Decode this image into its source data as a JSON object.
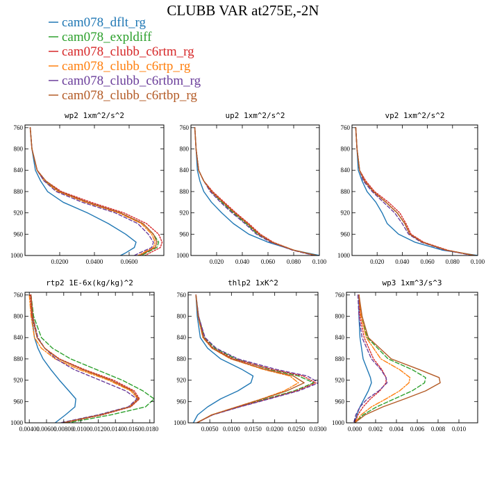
{
  "title": "CLUBB VAR at275E,-2N",
  "legend": [
    {
      "name": "cam078_dflt_rg",
      "color": "#1f77b4",
      "dash": ""
    },
    {
      "name": "cam078_expldiff",
      "color": "#2ca02c",
      "dash": "6,3"
    },
    {
      "name": "cam078_clubb_c6rtm_rg",
      "color": "#d62728",
      "dash": "2,2"
    },
    {
      "name": "cam078_clubb_c6rtp_rg",
      "color": "#ff7f0e",
      "dash": "7,2,2,2"
    },
    {
      "name": "cam078_clubb_c6rtbm_rg",
      "color": "#6a3d9a",
      "dash": "5,3"
    },
    {
      "name": "cam078_clubb_c6rtbp_rg",
      "color": "#b35a25",
      "dash": ""
    }
  ],
  "chart_data": [
    {
      "type": "line",
      "title": "wp2   1xm^2/s^2",
      "ylim": [
        1000,
        755
      ],
      "yticks": [
        760,
        800,
        840,
        880,
        920,
        960,
        1000
      ],
      "xlim": [
        0,
        0.08
      ],
      "xticks": [
        0.02,
        0.04,
        0.06
      ],
      "xtick_labels": [
        "0.0200",
        "0.0400",
        "0.0600"
      ],
      "y": [
        760,
        800,
        840,
        860,
        880,
        900,
        920,
        940,
        960,
        975,
        985,
        995,
        1000
      ],
      "series": [
        {
          "values": [
            0.003,
            0.004,
            0.006,
            0.009,
            0.013,
            0.022,
            0.036,
            0.048,
            0.058,
            0.064,
            0.063,
            0.058,
            0.055
          ]
        },
        {
          "values": [
            0.003,
            0.004,
            0.007,
            0.011,
            0.02,
            0.036,
            0.055,
            0.068,
            0.074,
            0.077,
            0.076,
            0.07,
            0.067
          ]
        },
        {
          "values": [
            0.003,
            0.004,
            0.007,
            0.012,
            0.021,
            0.038,
            0.057,
            0.07,
            0.077,
            0.079,
            0.078,
            0.072,
            0.069
          ]
        },
        {
          "values": [
            0.003,
            0.004,
            0.007,
            0.011,
            0.019,
            0.035,
            0.054,
            0.067,
            0.073,
            0.075,
            0.074,
            0.068,
            0.065
          ]
        },
        {
          "values": [
            0.003,
            0.004,
            0.007,
            0.011,
            0.018,
            0.033,
            0.052,
            0.065,
            0.071,
            0.074,
            0.073,
            0.066,
            0.063
          ]
        },
        {
          "values": [
            0.003,
            0.004,
            0.007,
            0.012,
            0.02,
            0.036,
            0.055,
            0.068,
            0.074,
            0.076,
            0.075,
            0.069,
            0.066
          ]
        }
      ]
    },
    {
      "type": "line",
      "title": "up2   1xm^2/s^2",
      "ylim": [
        1000,
        755
      ],
      "yticks": [
        760,
        800,
        840,
        880,
        920,
        960,
        1000
      ],
      "xlim": [
        0,
        0.1
      ],
      "xticks": [
        0.02,
        0.04,
        0.06,
        0.08,
        0.1
      ],
      "xtick_labels": [
        "0.020",
        "0.040",
        "0.060",
        "0.080",
        "0.100"
      ],
      "y": [
        760,
        800,
        840,
        860,
        880,
        900,
        920,
        940,
        960,
        975,
        990,
        1000
      ],
      "series": [
        {
          "values": [
            0.003,
            0.004,
            0.005,
            0.007,
            0.01,
            0.016,
            0.024,
            0.033,
            0.045,
            0.06,
            0.08,
            0.1
          ]
        },
        {
          "values": [
            0.003,
            0.004,
            0.006,
            0.01,
            0.016,
            0.024,
            0.033,
            0.043,
            0.052,
            0.063,
            0.08,
            0.098
          ]
        },
        {
          "values": [
            0.003,
            0.004,
            0.006,
            0.01,
            0.017,
            0.026,
            0.035,
            0.045,
            0.054,
            0.064,
            0.08,
            0.097
          ]
        },
        {
          "values": [
            0.003,
            0.004,
            0.006,
            0.01,
            0.016,
            0.025,
            0.034,
            0.044,
            0.053,
            0.063,
            0.08,
            0.097
          ]
        },
        {
          "values": [
            0.003,
            0.004,
            0.006,
            0.01,
            0.015,
            0.023,
            0.032,
            0.042,
            0.051,
            0.062,
            0.079,
            0.096
          ]
        },
        {
          "values": [
            0.003,
            0.004,
            0.006,
            0.01,
            0.016,
            0.025,
            0.034,
            0.044,
            0.053,
            0.063,
            0.08,
            0.098
          ]
        }
      ]
    },
    {
      "type": "line",
      "title": "vp2   1xm^2/s^2",
      "ylim": [
        1000,
        755
      ],
      "yticks": [
        760,
        800,
        840,
        880,
        920,
        960,
        1000
      ],
      "xlim": [
        0,
        0.1
      ],
      "xticks": [
        0.02,
        0.04,
        0.06,
        0.08,
        0.1
      ],
      "xtick_labels": [
        "0.020",
        "0.040",
        "0.060",
        "0.080",
        "0.100"
      ],
      "y": [
        760,
        800,
        840,
        860,
        880,
        900,
        920,
        940,
        960,
        975,
        990,
        1000
      ],
      "series": [
        {
          "values": [
            0.003,
            0.004,
            0.005,
            0.008,
            0.012,
            0.019,
            0.024,
            0.028,
            0.037,
            0.05,
            0.072,
            0.1
          ]
        },
        {
          "values": [
            0.003,
            0.004,
            0.006,
            0.01,
            0.017,
            0.027,
            0.036,
            0.042,
            0.046,
            0.056,
            0.075,
            0.098
          ]
        },
        {
          "values": [
            0.003,
            0.004,
            0.006,
            0.011,
            0.018,
            0.029,
            0.038,
            0.043,
            0.047,
            0.057,
            0.076,
            0.097
          ]
        },
        {
          "values": [
            0.003,
            0.004,
            0.006,
            0.01,
            0.017,
            0.027,
            0.036,
            0.042,
            0.046,
            0.056,
            0.075,
            0.097
          ]
        },
        {
          "values": [
            0.003,
            0.004,
            0.006,
            0.009,
            0.016,
            0.025,
            0.034,
            0.04,
            0.045,
            0.055,
            0.074,
            0.096
          ]
        },
        {
          "values": [
            0.003,
            0.004,
            0.006,
            0.01,
            0.017,
            0.027,
            0.036,
            0.042,
            0.046,
            0.056,
            0.075,
            0.098
          ]
        }
      ]
    },
    {
      "type": "line",
      "title": "rtp2   1E-6x(kg/kg)^2",
      "ylim": [
        1000,
        755
      ],
      "yticks": [
        760,
        800,
        840,
        880,
        920,
        960,
        1000
      ],
      "xlim": [
        0.0035,
        0.0185
      ],
      "xticks": [
        0.004,
        0.006,
        0.008,
        0.01,
        0.012,
        0.014,
        0.016,
        0.018
      ],
      "xtick_labels": [
        "0.00400",
        "0.00600",
        "0.00800",
        "0.0100",
        "0.0120",
        "0.0140",
        "0.0160",
        "0.0180"
      ],
      "y": [
        760,
        800,
        840,
        860,
        880,
        900,
        920,
        940,
        955,
        970,
        985,
        1000
      ],
      "series": [
        {
          "values": [
            0.0042,
            0.0043,
            0.0046,
            0.005,
            0.0056,
            0.0065,
            0.0075,
            0.0086,
            0.0094,
            0.0093,
            0.0082,
            0.007
          ]
        },
        {
          "values": [
            0.0042,
            0.0045,
            0.0054,
            0.0067,
            0.0088,
            0.0118,
            0.0148,
            0.0172,
            0.0185,
            0.0175,
            0.0135,
            0.0085
          ]
        },
        {
          "values": [
            0.0041,
            0.0043,
            0.0049,
            0.0058,
            0.0075,
            0.0104,
            0.0138,
            0.0162,
            0.0168,
            0.0158,
            0.0125,
            0.008
          ]
        },
        {
          "values": [
            0.004,
            0.0042,
            0.0046,
            0.0054,
            0.007,
            0.0098,
            0.0132,
            0.0158,
            0.0166,
            0.0156,
            0.0122,
            0.0078
          ]
        },
        {
          "values": [
            0.0042,
            0.0044,
            0.005,
            0.0058,
            0.0071,
            0.0092,
            0.0122,
            0.0152,
            0.0165,
            0.0155,
            0.012,
            0.0076
          ]
        },
        {
          "values": [
            0.0042,
            0.0044,
            0.0049,
            0.0058,
            0.0074,
            0.0102,
            0.0135,
            0.016,
            0.0167,
            0.0157,
            0.0123,
            0.0079
          ]
        }
      ]
    },
    {
      "type": "line",
      "title": "thlp2   1xK^2",
      "ylim": [
        1000,
        755
      ],
      "yticks": [
        760,
        800,
        840,
        880,
        920,
        960,
        1000
      ],
      "xlim": [
        0,
        0.03
      ],
      "xticks": [
        0.005,
        0.01,
        0.015,
        0.02,
        0.025,
        0.03
      ],
      "xtick_labels": [
        "0.0050",
        "0.0100",
        "0.0150",
        "0.0200",
        "0.0250",
        "0.0300"
      ],
      "y": [
        760,
        800,
        840,
        860,
        880,
        900,
        912,
        925,
        940,
        955,
        970,
        985,
        1000
      ],
      "series": [
        {
          "values": [
            0.0018,
            0.0021,
            0.0028,
            0.0045,
            0.0075,
            0.0125,
            0.015,
            0.0145,
            0.0115,
            0.0075,
            0.0045,
            0.0022,
            0.0012
          ]
        },
        {
          "values": [
            0.0018,
            0.0024,
            0.0038,
            0.0062,
            0.011,
            0.019,
            0.0255,
            0.029,
            0.0245,
            0.018,
            0.0115,
            0.0055,
            0.002
          ]
        },
        {
          "values": [
            0.0018,
            0.0024,
            0.0036,
            0.0058,
            0.0105,
            0.0195,
            0.0265,
            0.0295,
            0.025,
            0.0185,
            0.0118,
            0.0056,
            0.002
          ]
        },
        {
          "values": [
            0.0018,
            0.0023,
            0.0034,
            0.0055,
            0.0098,
            0.0175,
            0.0235,
            0.0255,
            0.0222,
            0.017,
            0.0112,
            0.0054,
            0.002
          ]
        },
        {
          "values": [
            0.0018,
            0.0024,
            0.0039,
            0.0065,
            0.0115,
            0.0205,
            0.0275,
            0.0302,
            0.0255,
            0.0188,
            0.012,
            0.0057,
            0.002
          ]
        },
        {
          "values": [
            0.0018,
            0.0023,
            0.0035,
            0.0056,
            0.01,
            0.018,
            0.0243,
            0.0268,
            0.0228,
            0.0172,
            0.0113,
            0.0055,
            0.002
          ]
        }
      ]
    },
    {
      "type": "line",
      "title": "wp3   1xm^3/s^3",
      "ylim": [
        1000,
        755
      ],
      "yticks": [
        760,
        800,
        840,
        880,
        920,
        960,
        1000
      ],
      "xlim": [
        -0.0008,
        0.0118
      ],
      "xticks": [
        0,
        0.002,
        0.004,
        0.006,
        0.008,
        0.01
      ],
      "xtick_labels": [
        "0.000",
        "0.002",
        "0.004",
        "0.006",
        "0.008",
        "0.010"
      ],
      "y": [
        760,
        800,
        840,
        880,
        900,
        915,
        925,
        940,
        955,
        970,
        985,
        1000
      ],
      "series": [
        {
          "values": [
            0.0004,
            0.0004,
            0.0005,
            0.0008,
            0.0012,
            0.0015,
            0.0016,
            0.0013,
            0.0009,
            0.0005,
            0.0002,
            0
          ]
        },
        {
          "values": [
            0.0004,
            0.0006,
            0.0012,
            0.0032,
            0.0055,
            0.0068,
            0.0067,
            0.0055,
            0.0038,
            0.0021,
            0.0008,
            0
          ]
        },
        {
          "values": [
            0.0004,
            0.0005,
            0.0009,
            0.0018,
            0.0026,
            0.003,
            0.003,
            0.0024,
            0.0015,
            0.0008,
            0.0003,
            0
          ]
        },
        {
          "values": [
            0.0004,
            0.0006,
            0.0011,
            0.0025,
            0.0043,
            0.0053,
            0.0052,
            0.0043,
            0.003,
            0.0016,
            0.0006,
            0
          ]
        },
        {
          "values": [
            0.0003,
            0.0004,
            0.0007,
            0.0016,
            0.0025,
            0.003,
            0.0031,
            0.0023,
            0.0012,
            0.0005,
            0.0001,
            -0.0001
          ]
        },
        {
          "values": [
            0.0004,
            0.0007,
            0.0013,
            0.0035,
            0.0062,
            0.0081,
            0.0082,
            0.0068,
            0.0048,
            0.0027,
            0.001,
            0
          ]
        }
      ]
    }
  ]
}
